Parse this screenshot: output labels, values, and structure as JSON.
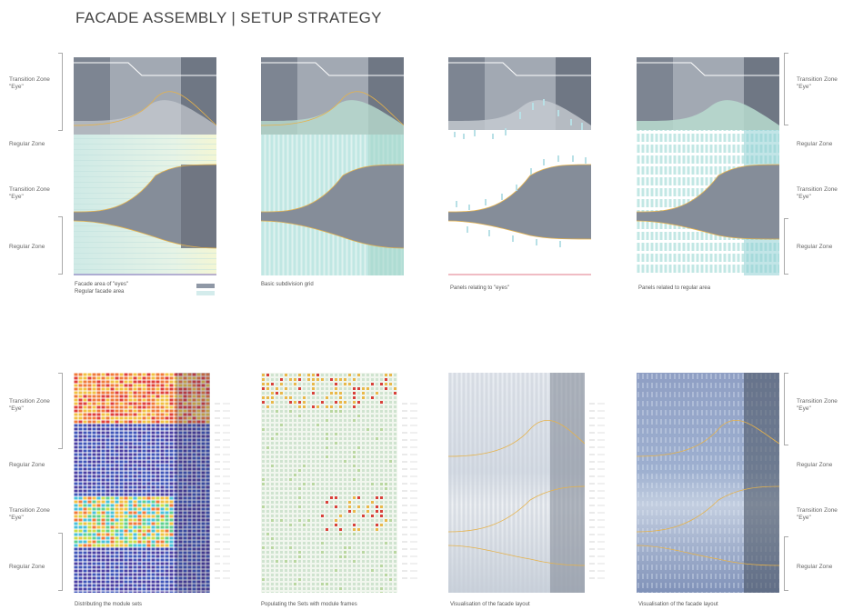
{
  "title": "FACADE ASSEMBLY | SETUP STRATEGY",
  "zones": {
    "transition_eye": "Transition Zone\n\"Eye\"",
    "regular": "Regular Zone"
  },
  "top_row": {
    "captions": [
      "Basic subdivision grid",
      "Panels relating to \"eyes\"",
      "Panels related to regular area"
    ],
    "legend": {
      "eyes_label": "Facade area of \"eyes\"",
      "regular_label": "Regular facade area",
      "eyes_color": "#8f98a6",
      "regular_color": "#d4ecec"
    }
  },
  "bottom_row": {
    "captions": [
      "Distributing the module sets",
      "Populating the Sets with module frames",
      "Visualisation of the facade layout",
      "Visualisation of the facade layout"
    ]
  },
  "colors": {
    "shape_dark": "#7d8592",
    "shape_mid": "#9ba3ae",
    "shape_light": "#b7bec7",
    "teal": "#9fd9d6",
    "curve": "#e6b24a",
    "grid": "#9ed6d4"
  }
}
